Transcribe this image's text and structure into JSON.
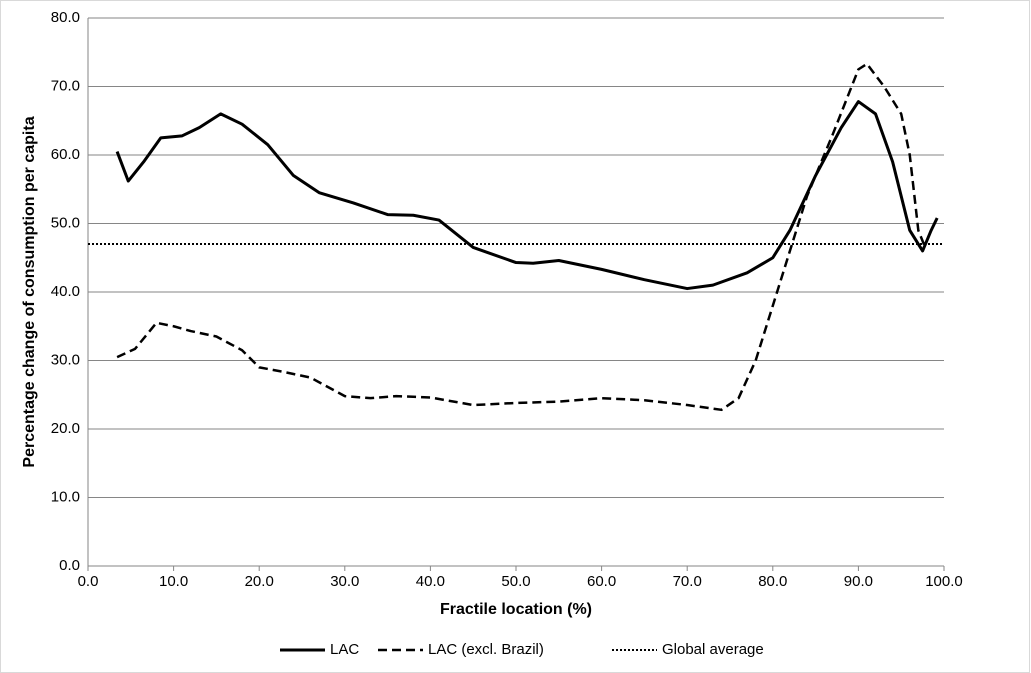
{
  "chart_data": {
    "type": "line",
    "x_label": "Fractile location (%)",
    "y_label": "Percentage change of consumption per capita",
    "xlim": [
      0,
      100
    ],
    "xticks": [
      {
        "value": 0,
        "label": "0.0"
      },
      {
        "value": 10,
        "label": "10.0"
      },
      {
        "value": 20,
        "label": "20.0"
      },
      {
        "value": 30,
        "label": "30.0"
      },
      {
        "value": 40,
        "label": "40.0"
      },
      {
        "value": 50,
        "label": "50.0"
      },
      {
        "value": 60,
        "label": "60.0"
      },
      {
        "value": 70,
        "label": "70.0"
      },
      {
        "value": 80,
        "label": "80.0"
      },
      {
        "value": 90,
        "label": "90.0"
      },
      {
        "value": 100,
        "label": "100.0"
      }
    ],
    "ylim": [
      0,
      80
    ],
    "yticks": [
      {
        "value": 0,
        "label": "0.0"
      },
      {
        "value": 10,
        "label": "10.0"
      },
      {
        "value": 20,
        "label": "20.0"
      },
      {
        "value": 30,
        "label": "30.0"
      },
      {
        "value": 40,
        "label": "40.0"
      },
      {
        "value": 50,
        "label": "50.0"
      },
      {
        "value": 60,
        "label": "60.0"
      },
      {
        "value": 70,
        "label": "70.0"
      },
      {
        "value": 80,
        "label": "80.0"
      }
    ],
    "grid": true,
    "legend": "bottom",
    "series": [
      {
        "name": "LAC",
        "color": "#000000",
        "style": "solid",
        "x": [
          3.4,
          4.7,
          6.5,
          8.5,
          11,
          13,
          15.5,
          18,
          21,
          24,
          27,
          31,
          35,
          38,
          41,
          45,
          50,
          52,
          55,
          60,
          65,
          70,
          73,
          77,
          80,
          82,
          85,
          88,
          90,
          92,
          94,
          96,
          97.5,
          98.5,
          99.2
        ],
        "values": [
          60.5,
          56.2,
          59,
          62.5,
          62.8,
          64,
          66,
          64.5,
          61.5,
          57,
          54.5,
          53,
          51.3,
          51.2,
          50.5,
          46.5,
          44.3,
          44.2,
          44.6,
          43.3,
          41.8,
          40.5,
          41,
          42.8,
          45,
          49,
          57,
          64,
          67.8,
          66,
          59,
          49,
          46,
          49,
          50.8
        ]
      },
      {
        "name": "LAC (excl. Brazil)",
        "color": "#000000",
        "style": "dashed",
        "x": [
          3.4,
          5.5,
          8,
          10,
          12,
          15,
          18,
          20,
          23,
          26,
          30,
          33,
          36,
          40,
          45,
          50,
          55,
          60,
          65,
          70,
          74,
          76,
          78,
          80,
          82,
          84,
          87,
          90,
          91,
          93,
          95,
          96,
          97,
          97.8
        ],
        "values": [
          30.5,
          31.7,
          35.5,
          35,
          34.3,
          33.5,
          31.5,
          29,
          28.3,
          27.5,
          24.8,
          24.5,
          24.8,
          24.6,
          23.5,
          23.8,
          24,
          24.5,
          24.2,
          23.5,
          22.8,
          24.5,
          30,
          38,
          46,
          54,
          63,
          72.5,
          73.3,
          70,
          66,
          60,
          49,
          46.5
        ]
      },
      {
        "name": "Global average",
        "color": "#000000",
        "style": "dotted",
        "x": [
          0,
          100
        ],
        "values": [
          47,
          47
        ]
      }
    ]
  }
}
